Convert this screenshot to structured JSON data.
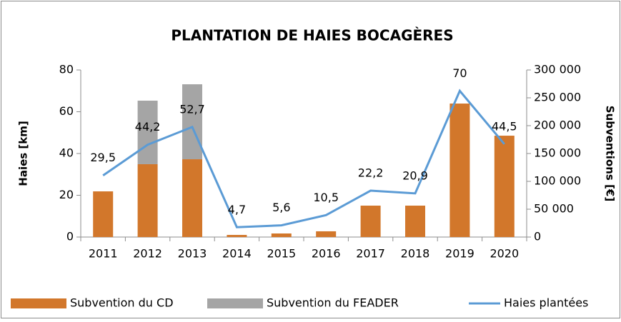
{
  "chart_data": {
    "type": "bar",
    "title": "PLANTATION DE HAIES BOCAGÈRES",
    "categories": [
      "2011",
      "2012",
      "2013",
      "2014",
      "2015",
      "2016",
      "2017",
      "2018",
      "2019",
      "2020"
    ],
    "y_label": "Haies [km]",
    "y2_label": "Subventions [€]",
    "ylim": [
      0,
      80
    ],
    "yticks": [
      0,
      20,
      40,
      60,
      80
    ],
    "y2lim": [
      0,
      300000
    ],
    "y2ticks": [
      {
        "value": 0,
        "label": "0"
      },
      {
        "value": 50000,
        "label": "50 000"
      },
      {
        "value": 100000,
        "label": "100 000"
      },
      {
        "value": 150000,
        "label": "150 000"
      },
      {
        "value": 200000,
        "label": "200 000"
      },
      {
        "value": 250000,
        "label": "250 000"
      },
      {
        "value": 300000,
        "label": "300 000"
      }
    ],
    "series": [
      {
        "name": "Subvention du CD",
        "type": "bar",
        "axis": "y2",
        "color": "#d2772b",
        "values": [
          82000,
          130800,
          139700,
          3800,
          6400,
          10300,
          56400,
          56400,
          239700,
          182000
        ]
      },
      {
        "name": "Subvention du FEADER",
        "type": "bar",
        "axis": "y2",
        "color": "#a5a5a5",
        "values": [
          0,
          114100,
          134600,
          0,
          0,
          0,
          0,
          0,
          0,
          0
        ]
      },
      {
        "name": "Haies plantées",
        "type": "line",
        "color": "#5b9bd5",
        "values": [
          29.5,
          44.2,
          52.7,
          4.7,
          5.6,
          10.5,
          22.2,
          20.9,
          70,
          44.5
        ],
        "value_labels": [
          "29,5",
          "44,2",
          "52,7",
          "4,7",
          "5,6",
          "10,5",
          "22,2",
          "20,9",
          "70",
          "44,5"
        ]
      }
    ]
  }
}
